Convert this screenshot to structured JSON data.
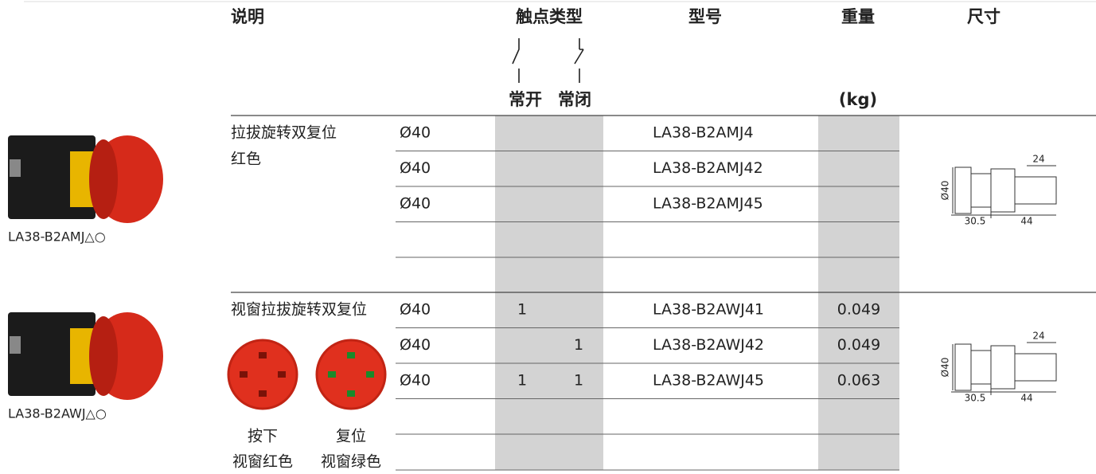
{
  "header": {
    "description": "说明",
    "contact_type": "触点类型",
    "normally_open": "常开",
    "normally_closed": "常闭",
    "model": "型号",
    "weight": "重量",
    "weight_unit": "(kg)",
    "dimensions": "尺寸"
  },
  "sections": [
    {
      "caption": "LA38-B2AMJ△○",
      "description": [
        "拉拔旋转双复位",
        "红色"
      ],
      "rows": [
        {
          "diameter": "Ø40",
          "model": "LA38-B2AMJ4"
        },
        {
          "diameter": "Ø40",
          "model": "LA38-B2AMJ42"
        },
        {
          "diameter": "Ø40",
          "model": "LA38-B2AMJ45"
        }
      ],
      "drawing": {
        "depth": 24,
        "diameter": "Ø40",
        "length_a": 30.5,
        "length_b": 44
      }
    },
    {
      "caption": "LA38-B2AWJ△○",
      "description": [
        "视窗拉拔旋转双复位"
      ],
      "rows": [
        {
          "diameter": "Ø40",
          "no": 1,
          "model": "LA38-B2AWJ41",
          "weight": 0.049
        },
        {
          "diameter": "Ø40",
          "nc": 1,
          "model": "LA38-B2AWJ42",
          "weight": 0.049
        },
        {
          "diameter": "Ø40",
          "no": 1,
          "nc": 1,
          "model": "LA38-B2AWJ45",
          "weight": 0.063
        }
      ],
      "drawing": {
        "depth": 24,
        "diameter": "Ø40",
        "length_a": 30.5,
        "length_b": 44
      },
      "buttons": [
        {
          "state": "按下",
          "window": "视窗红色"
        },
        {
          "state": "复位",
          "window": "视窗绿色"
        }
      ]
    }
  ]
}
